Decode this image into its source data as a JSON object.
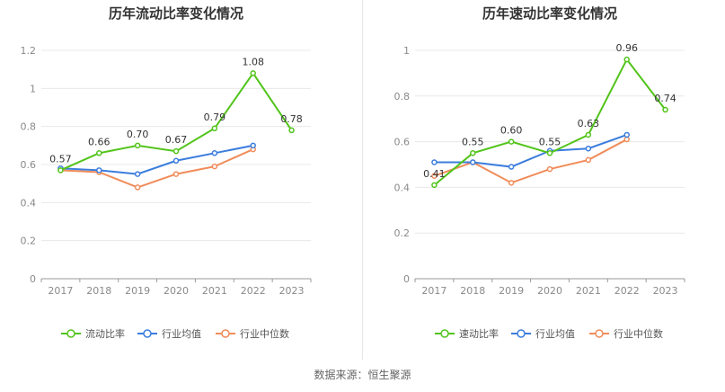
{
  "chart_data": [
    {
      "type": "line",
      "title": "历年流动比率变化情况",
      "categories": [
        "2017",
        "2018",
        "2019",
        "2020",
        "2021",
        "2022",
        "2023"
      ],
      "ylim": [
        0,
        1.2
      ],
      "yticks": [
        "0",
        "0.2",
        "0.4",
        "0.6",
        "0.8",
        "1",
        "1.2"
      ],
      "yticks_values": [
        0,
        0.2,
        0.4,
        0.6,
        0.8,
        1.0,
        1.2
      ],
      "grid": true,
      "legend_position": "bottom",
      "series": [
        {
          "name": "流动比率",
          "color": "#52c41a",
          "values": [
            0.57,
            0.66,
            0.7,
            0.67,
            0.79,
            1.08,
            0.78
          ],
          "labels": [
            "0.57",
            "0.66",
            "0.70",
            "0.67",
            "0.79",
            "1.08",
            "0.78"
          ]
        },
        {
          "name": "行业均值",
          "color": "#3b7ddd",
          "values": [
            0.58,
            0.57,
            0.55,
            0.62,
            0.66,
            0.7,
            null
          ]
        },
        {
          "name": "行业中位数",
          "color": "#f08c5a",
          "values": [
            0.57,
            0.56,
            0.48,
            0.55,
            0.59,
            0.68,
            null
          ]
        }
      ]
    },
    {
      "type": "line",
      "title": "历年速动比率变化情况",
      "categories": [
        "2017",
        "2018",
        "2019",
        "2020",
        "2021",
        "2022",
        "2023"
      ],
      "ylim": [
        0,
        1.0
      ],
      "yticks": [
        "0",
        "0.2",
        "0.4",
        "0.6",
        "0.8",
        "1"
      ],
      "yticks_values": [
        0,
        0.2,
        0.4,
        0.6,
        0.8,
        1.0
      ],
      "grid": true,
      "legend_position": "bottom",
      "series": [
        {
          "name": "速动比率",
          "color": "#52c41a",
          "values": [
            0.41,
            0.55,
            0.6,
            0.55,
            0.63,
            0.96,
            0.74
          ],
          "labels": [
            "0.41",
            "0.55",
            "0.60",
            "0.55",
            "0.63",
            "0.96",
            "0.74"
          ]
        },
        {
          "name": "行业均值",
          "color": "#3b7ddd",
          "values": [
            0.51,
            0.51,
            0.49,
            0.56,
            0.57,
            0.63,
            null
          ]
        },
        {
          "name": "行业中位数",
          "color": "#f08c5a",
          "values": [
            0.45,
            0.51,
            0.42,
            0.48,
            0.52,
            0.61,
            null
          ]
        }
      ]
    }
  ],
  "source": "数据来源：恒生聚源"
}
